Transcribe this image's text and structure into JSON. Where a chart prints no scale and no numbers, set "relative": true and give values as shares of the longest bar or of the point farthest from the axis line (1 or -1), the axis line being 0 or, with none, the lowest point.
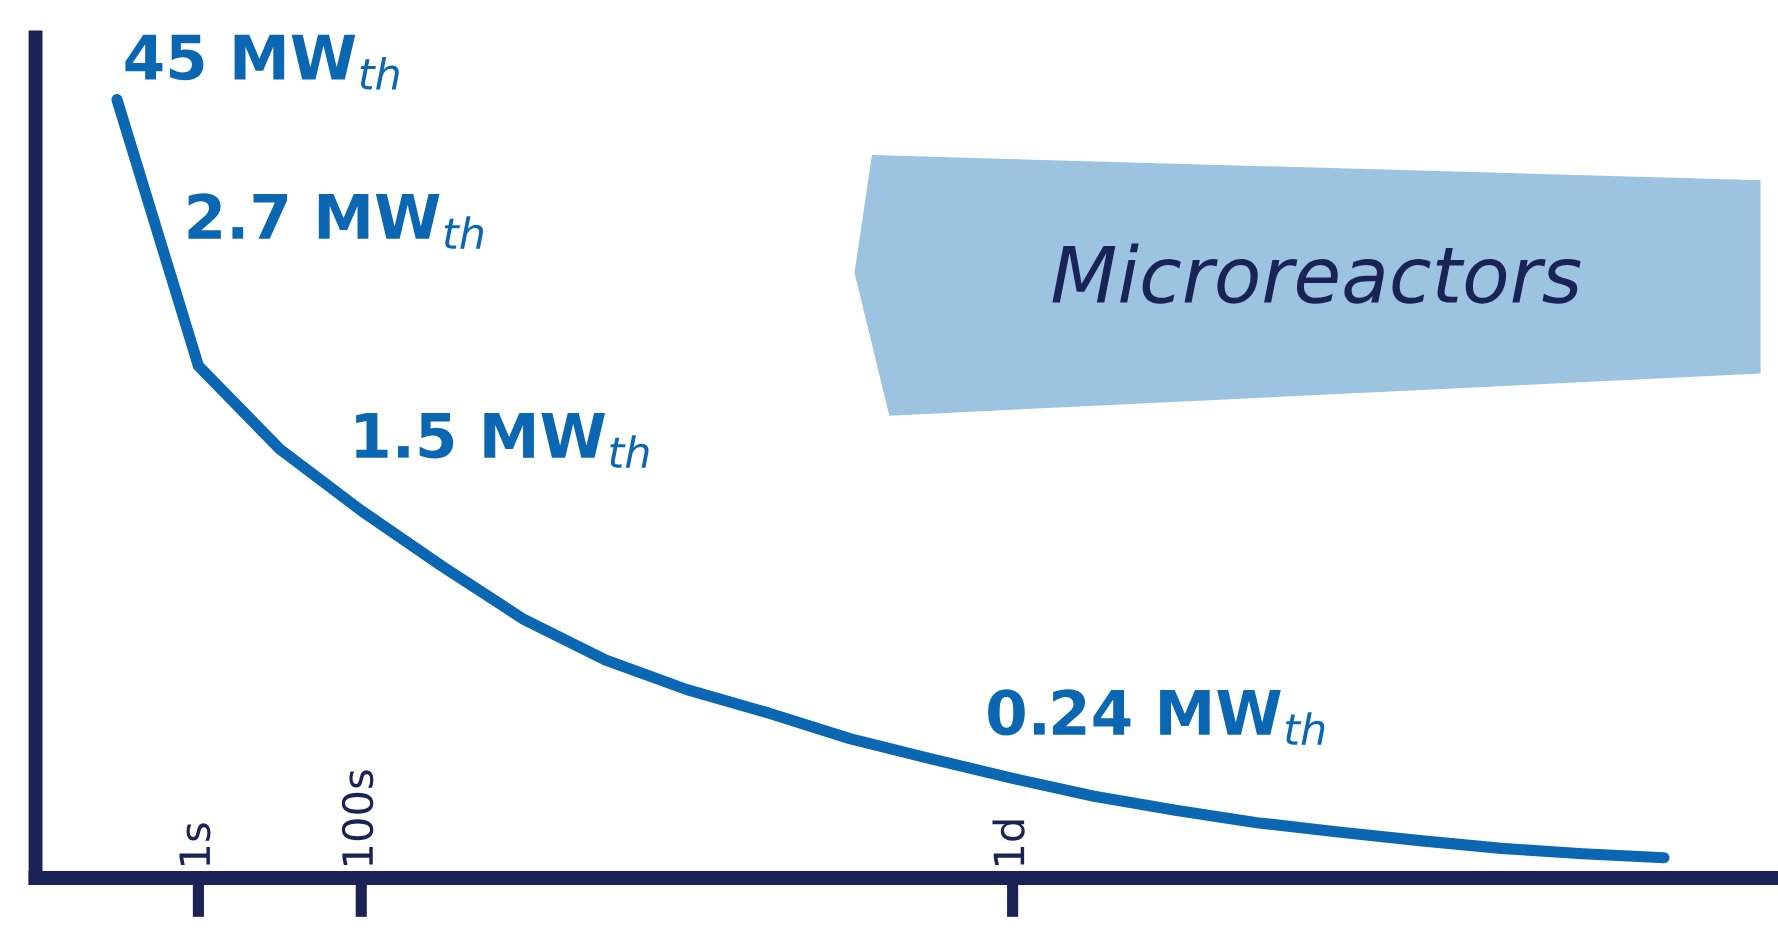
{
  "chart_data": {
    "type": "line",
    "title": "Microreactors",
    "relative": true,
    "categories": [
      null,
      "1s",
      null,
      "100s",
      null,
      null,
      null,
      null,
      null,
      null,
      null,
      "1d",
      null,
      null,
      null,
      null,
      null,
      null,
      null,
      null
    ],
    "series": [
      {
        "color": "#0b67b2",
        "values": [
          1.0,
          0.658,
          0.551,
          0.472,
          0.4,
          0.332,
          0.28,
          0.242,
          0.212,
          0.179,
          0.153,
          0.128,
          0.105,
          0.087,
          0.071,
          0.059,
          0.048,
          0.038,
          0.031,
          0.026
        ]
      }
    ],
    "annotations": [
      "45 MW$_{th}$",
      "2.7 MW$_{th}$",
      "1.5 MW$_{th}$",
      "0.24 MW$_{th}$"
    ],
    "grid": false,
    "marker": "none",
    "line_style": "solid"
  }
}
